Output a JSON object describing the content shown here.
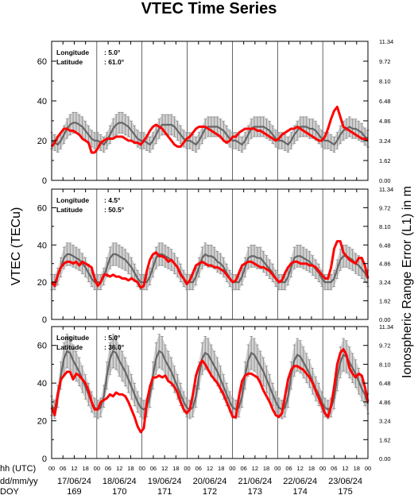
{
  "chart_data": {
    "type": "line",
    "title": "VTEC Time Series",
    "ylabel_left": "VTEC (TECu)",
    "ylabel_right": "Ionospheric Range Error (L1) in m",
    "ylim": [
      0,
      70
    ],
    "left_ticks": [
      "0",
      "20",
      "40",
      "60"
    ],
    "right_ticks": [
      "0.00",
      "1.62",
      "3.24",
      "4.86",
      "6.48",
      "8.10",
      "9.72",
      "11.34"
    ],
    "x_hour_labels": [
      "00",
      "06",
      "12",
      "18"
    ],
    "x_end_label": "00",
    "row_labels": [
      "hh (UTC)",
      "dd/mm/yy",
      "DOY"
    ],
    "dates": [
      "17/06/24",
      "18/06/24",
      "19/06/24",
      "20/06/24",
      "21/06/24",
      "22/06/24",
      "23/06/24"
    ],
    "doy": [
      "169",
      "170",
      "171",
      "172",
      "173",
      "174",
      "175"
    ],
    "series_colors": {
      "observed": "#ff0000",
      "median": "#666666",
      "band": "#a9a9a9"
    },
    "panels": [
      {
        "longitude_label": "Longitude",
        "longitude_value": ":   5.0°",
        "latitude_label": "Latitude",
        "latitude_value": ": 61.0°",
        "median": [
          20,
          19,
          18,
          20,
          23,
          26,
          28,
          29,
          29,
          28,
          27,
          25,
          23,
          21,
          20,
          20,
          19,
          18,
          20,
          23,
          26,
          28,
          29,
          29,
          28,
          27,
          25,
          23,
          21,
          20,
          20,
          19,
          18,
          20,
          23,
          26,
          28,
          28,
          28,
          28,
          27,
          25,
          23,
          21,
          20,
          20,
          19,
          18,
          20,
          23,
          26,
          27,
          27,
          27,
          27,
          26,
          25,
          23,
          21,
          20,
          20,
          19,
          18,
          20,
          23,
          26,
          27,
          27,
          27,
          27,
          26,
          25,
          23,
          21,
          20,
          20,
          19,
          18,
          20,
          23,
          25,
          27,
          27,
          27,
          26,
          26,
          25,
          23,
          21,
          20,
          20,
          19,
          18,
          20,
          23,
          25,
          26,
          27,
          26,
          26,
          25,
          24,
          22,
          21
        ],
        "observed": [
          17,
          19,
          22,
          24,
          26,
          26,
          25,
          25,
          24,
          23,
          21,
          20,
          19,
          14,
          14,
          16,
          19,
          20,
          21,
          21,
          21,
          22,
          22,
          22,
          21,
          20,
          20,
          19,
          19,
          18,
          20,
          22,
          25,
          27,
          28,
          27,
          26,
          24,
          22,
          20,
          18,
          17,
          17,
          19,
          21,
          22,
          24,
          26,
          27,
          27,
          27,
          26,
          25,
          24,
          23,
          22,
          20,
          19,
          20,
          22,
          22,
          24,
          25,
          26,
          26,
          26,
          26,
          25,
          25,
          24,
          23,
          22,
          21,
          20,
          21,
          23,
          24,
          25,
          26,
          26,
          27,
          26,
          25,
          24,
          23,
          22,
          21,
          20,
          20,
          22,
          26,
          31,
          35,
          37,
          32,
          27,
          26,
          25,
          24,
          23,
          22,
          21,
          21,
          20
        ]
      },
      {
        "longitude_label": "Longitude",
        "longitude_value": ":   4.5°",
        "latitude_label": "Latitude",
        "latitude_value": ": 50.5°",
        "median": [
          20,
          20,
          23,
          28,
          33,
          35,
          35,
          34,
          33,
          32,
          30,
          28,
          25,
          22,
          20,
          20,
          20,
          23,
          28,
          33,
          35,
          35,
          34,
          33,
          32,
          30,
          28,
          25,
          22,
          20,
          20,
          20,
          23,
          28,
          33,
          35,
          35,
          34,
          33,
          32,
          30,
          28,
          25,
          22,
          20,
          20,
          20,
          23,
          28,
          33,
          35,
          34,
          34,
          33,
          31,
          30,
          28,
          25,
          22,
          20,
          20,
          20,
          23,
          28,
          33,
          34,
          34,
          33,
          33,
          31,
          29,
          27,
          25,
          22,
          20,
          20,
          20,
          23,
          28,
          33,
          34,
          34,
          33,
          32,
          31,
          29,
          27,
          25,
          22,
          20,
          20,
          20,
          22,
          27,
          32,
          34,
          34,
          33,
          32,
          30,
          29,
          27,
          25,
          22
        ],
        "observed": [
          20,
          18,
          24,
          28,
          30,
          31,
          31,
          30,
          31,
          29,
          31,
          30,
          29,
          28,
          22,
          18,
          20,
          24,
          24,
          23,
          24,
          23,
          23,
          22,
          22,
          21,
          22,
          21,
          20,
          17,
          18,
          26,
          32,
          35,
          36,
          34,
          34,
          33,
          31,
          32,
          30,
          28,
          24,
          22,
          19,
          21,
          25,
          29,
          30,
          31,
          30,
          29,
          29,
          28,
          28,
          27,
          26,
          24,
          22,
          20,
          21,
          25,
          29,
          30,
          31,
          31,
          30,
          29,
          28,
          28,
          27,
          26,
          24,
          22,
          20,
          21,
          25,
          28,
          30,
          31,
          31,
          30,
          30,
          30,
          29,
          29,
          28,
          26,
          24,
          22,
          22,
          28,
          38,
          42,
          42,
          36,
          34,
          32,
          31,
          30,
          33,
          33,
          29,
          22
        ]
      },
      {
        "longitude_label": "Longitude",
        "longitude_value": ":   5.0°",
        "latitude_label": "Latitude",
        "latitude_value": ": 36.0°",
        "median": [
          28,
          26,
          33,
          44,
          53,
          57,
          56,
          52,
          49,
          46,
          42,
          38,
          34,
          30,
          27,
          26,
          27,
          33,
          44,
          53,
          57,
          56,
          52,
          49,
          46,
          42,
          38,
          34,
          30,
          27,
          26,
          27,
          33,
          44,
          53,
          57,
          56,
          52,
          49,
          46,
          42,
          38,
          34,
          30,
          27,
          26,
          27,
          33,
          44,
          53,
          56,
          55,
          52,
          49,
          46,
          42,
          38,
          34,
          30,
          27,
          26,
          27,
          33,
          44,
          52,
          56,
          55,
          52,
          49,
          46,
          42,
          38,
          34,
          30,
          27,
          26,
          27,
          33,
          44,
          52,
          55,
          54,
          51,
          48,
          45,
          41,
          37,
          34,
          30,
          27,
          26,
          27,
          32,
          43,
          51,
          55,
          54,
          51,
          48,
          45,
          41,
          37,
          34,
          29
        ],
        "observed": [
          27,
          23,
          34,
          42,
          44,
          46,
          46,
          42,
          45,
          44,
          42,
          40,
          36,
          30,
          26,
          26,
          30,
          31,
          32,
          34,
          33,
          35,
          34,
          34,
          33,
          30,
          26,
          22,
          17,
          14,
          16,
          30,
          38,
          43,
          43,
          44,
          43,
          44,
          41,
          40,
          38,
          35,
          30,
          26,
          24,
          26,
          34,
          44,
          49,
          52,
          50,
          47,
          44,
          42,
          40,
          37,
          34,
          30,
          26,
          22,
          22,
          33,
          41,
          44,
          45,
          45,
          44,
          43,
          40,
          36,
          33,
          30,
          26,
          23,
          22,
          24,
          33,
          42,
          47,
          49,
          49,
          48,
          47,
          45,
          43,
          40,
          36,
          32,
          28,
          24,
          22,
          28,
          38,
          50,
          56,
          58,
          55,
          48,
          45,
          43,
          45,
          44,
          38,
          30
        ]
      }
    ]
  }
}
